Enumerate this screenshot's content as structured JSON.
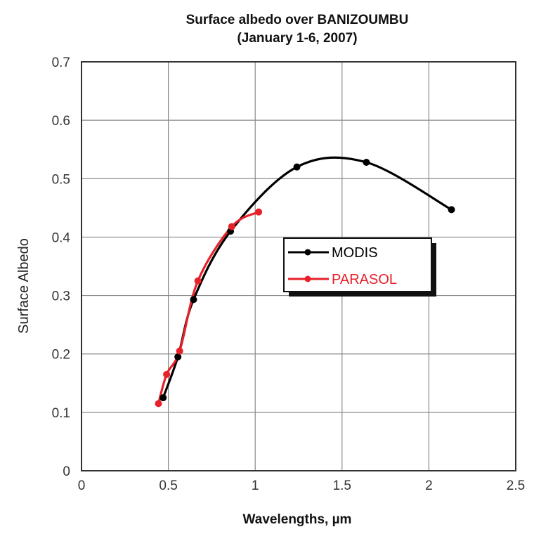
{
  "chart_data": {
    "type": "line",
    "title": "Surface albedo over BANIZOUMBU",
    "subtitle": "(January 1-6, 2007)",
    "xlabel": "Wavelengths, µm",
    "ylabel": "Surface  Albedo",
    "xlim": [
      0,
      2.5
    ],
    "ylim": [
      0,
      0.7
    ],
    "x_ticks": [
      "0",
      "0.5",
      "1",
      "1.5",
      "2",
      "2.5"
    ],
    "y_ticks": [
      "0",
      "0.1",
      "0.2",
      "0.3",
      "0.4",
      "0.5",
      "0.6",
      "0.7"
    ],
    "grid": true,
    "legend_position": "center-right",
    "series": [
      {
        "name": "MODIS",
        "color": "#000000",
        "x": [
          0.47,
          0.555,
          0.645,
          0.858,
          1.24,
          1.64,
          2.13
        ],
        "y": [
          0.125,
          0.195,
          0.293,
          0.41,
          0.52,
          0.528,
          0.447
        ]
      },
      {
        "name": "PARASOL",
        "color": "#e8202a",
        "x": [
          0.443,
          0.49,
          0.565,
          0.67,
          0.865,
          1.02
        ],
        "y": [
          0.115,
          0.165,
          0.205,
          0.325,
          0.418,
          0.443
        ]
      }
    ]
  }
}
